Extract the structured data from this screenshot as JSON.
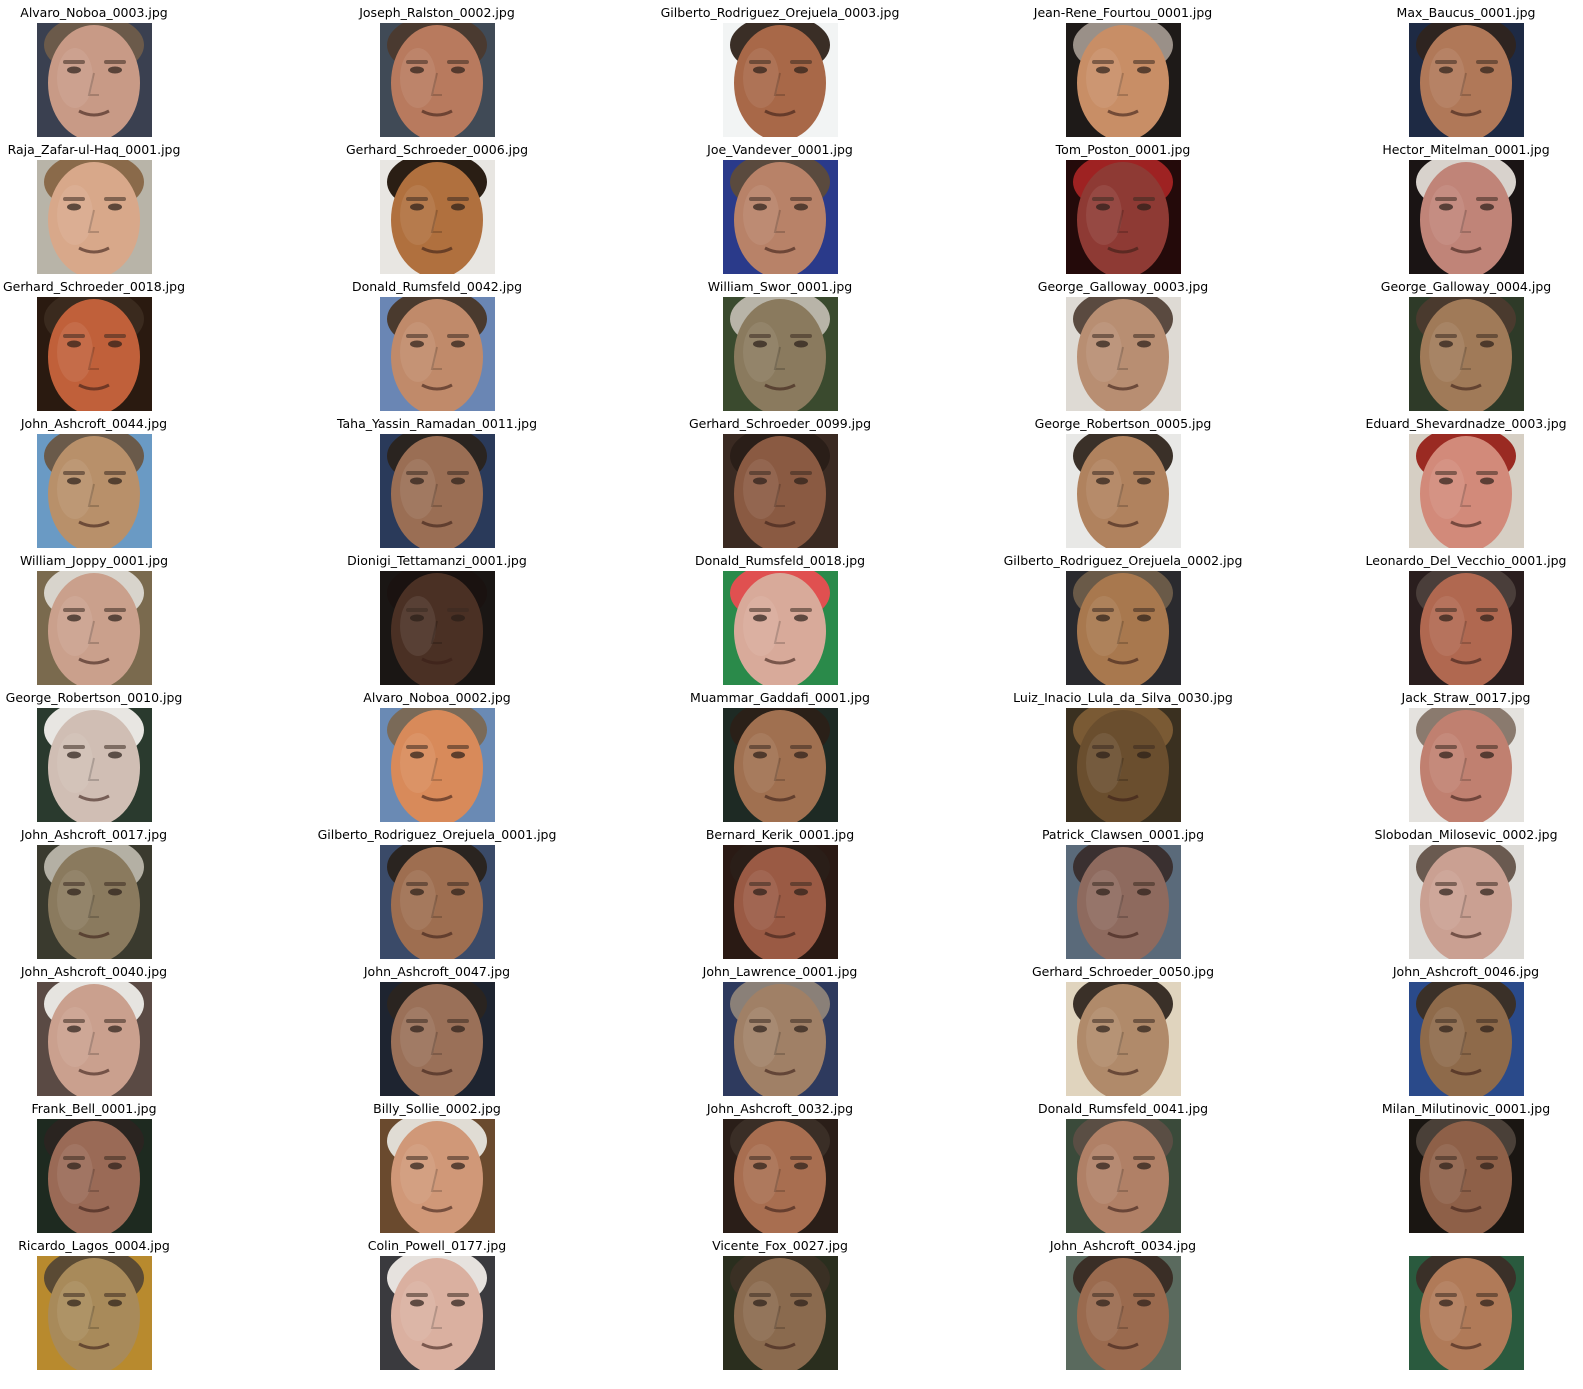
{
  "figure": {
    "columns": 5,
    "background": "#ffffff",
    "cells": [
      {
        "title": "Alvaro_Noboa_0003.jpg",
        "skin": "#c89a86",
        "bg": "#3a4050",
        "hair": "#6b5a4a"
      },
      {
        "title": "Joseph_Ralston_0002.jpg",
        "skin": "#b87a5e",
        "bg": "#404a56",
        "hair": "#4a3a30"
      },
      {
        "title": "Gilberto_Rodriguez_Orejuela_0003.jpg",
        "skin": "#a86848",
        "bg": "#f2f4f4",
        "hair": "#3a2e26"
      },
      {
        "title": "Jean-Rene_Fourtou_0001.jpg",
        "skin": "#c88e66",
        "bg": "#1e1a18",
        "hair": "#9a9088"
      },
      {
        "title": "Max_Baucus_0001.jpg",
        "skin": "#b07858",
        "bg": "#1e2a44",
        "hair": "#2e2420"
      },
      {
        "title": "Raja_Zafar-ul-Haq_0001.jpg",
        "skin": "#d8a88a",
        "bg": "#b8b4a8",
        "hair": "#8a6a4a"
      },
      {
        "title": "Gerhard_Schroeder_0006.jpg",
        "skin": "#b0703e",
        "bg": "#e8e6e2",
        "hair": "#2a1e14"
      },
      {
        "title": "Joe_Vandever_0001.jpg",
        "skin": "#b88268",
        "bg": "#2a3a8a",
        "hair": "#5a4a3e"
      },
      {
        "title": "Tom_Poston_0001.jpg",
        "skin": "#8e3a34",
        "bg": "#240a0a",
        "hair": "#9e2222"
      },
      {
        "title": "Hector_Mitelman_0001.jpg",
        "skin": "#c08478",
        "bg": "#1a1414",
        "hair": "#d8d2cc"
      },
      {
        "title": "Gerhard_Schroeder_0018.jpg",
        "skin": "#c0603a",
        "bg": "#2a1a10",
        "hair": "#3a2a1e"
      },
      {
        "title": "Donald_Rumsfeld_0042.jpg",
        "skin": "#c08a6a",
        "bg": "#6a86b4",
        "hair": "#4a3a2e"
      },
      {
        "title": "William_Swor_0001.jpg",
        "skin": "#8a7a5e",
        "bg": "#3a4a2e",
        "hair": "#b8b4a8"
      },
      {
        "title": "George_Galloway_0003.jpg",
        "skin": "#b88e72",
        "bg": "#dedad4",
        "hair": "#5a4a40"
      },
      {
        "title": "George_Galloway_0004.jpg",
        "skin": "#a07a58",
        "bg": "#2e3a28",
        "hair": "#4a3a2e"
      },
      {
        "title": "John_Ashcroft_0044.jpg",
        "skin": "#b8906a",
        "bg": "#6a9ac4",
        "hair": "#6a5a4a"
      },
      {
        "title": "Taha_Yassin_Ramadan_0011.jpg",
        "skin": "#9a6e54",
        "bg": "#2a3a5a",
        "hair": "#2a2420"
      },
      {
        "title": "Gerhard_Schroeder_0099.jpg",
        "skin": "#8a5a42",
        "bg": "#3a2a22",
        "hair": "#2a1e18"
      },
      {
        "title": "George_Robertson_0005.jpg",
        "skin": "#b0825e",
        "bg": "#e8e8e6",
        "hair": "#3a3028"
      },
      {
        "title": "Eduard_Shevardnadze_0003.jpg",
        "skin": "#d28a7a",
        "bg": "#d6cfc4",
        "hair": "#9a2a22"
      },
      {
        "title": "William_Joppy_0001.jpg",
        "skin": "#caa08c",
        "bg": "#7a6a4e",
        "hair": "#d8d4cc"
      },
      {
        "title": "Dionigi_Tettamanzi_0001.jpg",
        "skin": "#4a3024",
        "bg": "#1a1614",
        "hair": "#1a1210"
      },
      {
        "title": "Donald_Rumsfeld_0018.jpg",
        "skin": "#d8aa9a",
        "bg": "#2a8a4a",
        "hair": "#e05050"
      },
      {
        "title": "Gilberto_Rodriguez_Orejuela_0002.jpg",
        "skin": "#a8784e",
        "bg": "#2a2a2e",
        "hair": "#6a5a48"
      },
      {
        "title": "Leonardo_Del_Vecchio_0001.jpg",
        "skin": "#b06850",
        "bg": "#2a1e1e",
        "hair": "#4a3e3a"
      },
      {
        "title": "George_Robertson_0010.jpg",
        "skin": "#d0beb4",
        "bg": "#2a3a2e",
        "hair": "#e8e6e2"
      },
      {
        "title": "Alvaro_Noboa_0002.jpg",
        "skin": "#d88a5a",
        "bg": "#6a8ab4",
        "hair": "#7a6a58"
      },
      {
        "title": "Muammar_Gaddafi_0001.jpg",
        "skin": "#a07050",
        "bg": "#1e2a24",
        "hair": "#2a2018"
      },
      {
        "title": "Luiz_Inacio_Lula_da_Silva_0030.jpg",
        "skin": "#6a4e2e",
        "bg": "#3a3020",
        "hair": "#7a5a34"
      },
      {
        "title": "Jack_Straw_0017.jpg",
        "skin": "#c08070",
        "bg": "#e4e2de",
        "hair": "#8a7a6e"
      },
      {
        "title": "John_Ashcroft_0017.jpg",
        "skin": "#8a7a5e",
        "bg": "#3a3a2e",
        "hair": "#b4b0a4"
      },
      {
        "title": "Gilberto_Rodriguez_Orejuela_0001.jpg",
        "skin": "#9e6e50",
        "bg": "#3a4a68",
        "hair": "#2a2420"
      },
      {
        "title": "Bernard_Kerik_0001.jpg",
        "skin": "#9a5a44",
        "bg": "#2a1a14",
        "hair": "#2a1e18"
      },
      {
        "title": "Patrick_Clawsen_0001.jpg",
        "skin": "#8e6a5e",
        "bg": "#5a6a7a",
        "hair": "#3a3030"
      },
      {
        "title": "Slobodan_Milosevic_0002.jpg",
        "skin": "#caa092",
        "bg": "#dcdad6",
        "hair": "#6a5a50"
      },
      {
        "title": "John_Ashcroft_0040.jpg",
        "skin": "#caa08e",
        "bg": "#5a4a44",
        "hair": "#e6e4e0"
      },
      {
        "title": "John_Ashcroft_0047.jpg",
        "skin": "#9a7058",
        "bg": "#1e2430",
        "hair": "#2a2420"
      },
      {
        "title": "John_Lawrence_0001.jpg",
        "skin": "#a08066",
        "bg": "#2e3a5e",
        "hair": "#8a8078"
      },
      {
        "title": "Gerhard_Schroeder_0050.jpg",
        "skin": "#b08a6a",
        "bg": "#e0d4be",
        "hair": "#3a3028"
      },
      {
        "title": "John_Ashcroft_0046.jpg",
        "skin": "#8e6a4a",
        "bg": "#2a4a8a",
        "hair": "#3a3028"
      },
      {
        "title": "Frank_Bell_0001.jpg",
        "skin": "#9a6a56",
        "bg": "#1e2a20",
        "hair": "#2a2420"
      },
      {
        "title": "Billy_Sollie_0002.jpg",
        "skin": "#d09878",
        "bg": "#6a4a2e",
        "hair": "#e0dcd4"
      },
      {
        "title": "John_Ashcroft_0032.jpg",
        "skin": "#a86e50",
        "bg": "#2a1e18",
        "hair": "#3a2e26"
      },
      {
        "title": "Donald_Rumsfeld_0041.jpg",
        "skin": "#b08066",
        "bg": "#3a4a3a",
        "hair": "#5a4e44"
      },
      {
        "title": "Milan_Milutinovic_0001.jpg",
        "skin": "#8e6048",
        "bg": "#1a1612",
        "hair": "#4a4038"
      },
      {
        "title": "Ricardo_Lagos_0004.jpg",
        "skin": "#a88a5a",
        "bg": "#b88a2e",
        "hair": "#5a4a34"
      },
      {
        "title": "Colin_Powell_0177.jpg",
        "skin": "#dab0a0",
        "bg": "#3a3a3e",
        "hair": "#e6e2de"
      },
      {
        "title": "Vicente_Fox_0027.jpg",
        "skin": "#8a6a4e",
        "bg": "#2a2e1e",
        "hair": "#3a3024"
      },
      {
        "title": "John_Ashcroft_0034.jpg",
        "skin": "#9a6a4e",
        "bg": "#5a6a5e",
        "hair": "#3a2e26"
      },
      {
        "title": "",
        "skin": "#b07a58",
        "bg": "#2a5a3e",
        "hair": "#3a3028"
      }
    ]
  }
}
